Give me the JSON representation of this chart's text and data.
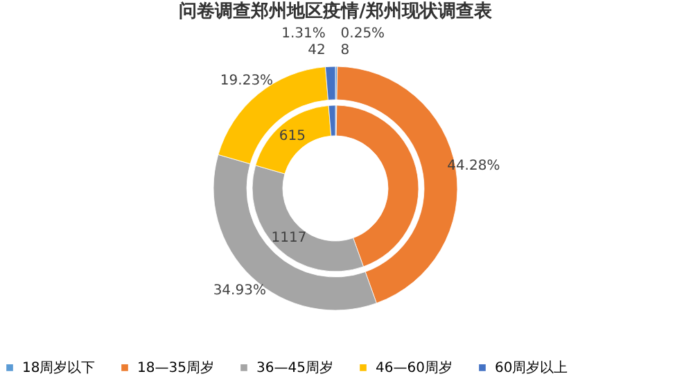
{
  "chart_data": {
    "type": "donut",
    "title": "问卷调查郑州地区疫情/郑州现状调查表",
    "categories": [
      "18周岁以下",
      "18—35周岁",
      "36—45周岁",
      "46—60周岁",
      "60周岁以上"
    ],
    "colors": [
      "#5b9bd5",
      "#ed7d31",
      "#a5a5a5",
      "#ffc000",
      "#4472c4"
    ],
    "series": [
      {
        "values": [
          0.25,
          44.28,
          34.93,
          19.23,
          1.31
        ],
        "value_labels": [
          "0.25%",
          "44.28%",
          "34.93%",
          "19.23%",
          "1.31%"
        ]
      },
      {
        "values": [
          8,
          1416,
          1117,
          615,
          42
        ],
        "value_labels": [
          "8",
          null,
          "1117",
          "615",
          "42"
        ]
      }
    ],
    "legend": "bottom"
  }
}
